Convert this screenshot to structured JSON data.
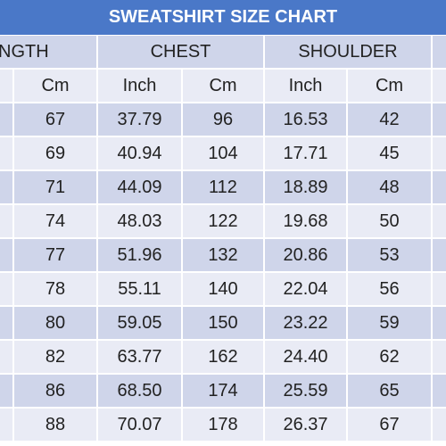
{
  "header": {
    "title": "SWEATSHIRT SIZE CHART"
  },
  "table": {
    "groups": [
      "NGTH",
      "CHEST",
      "SHOULDER"
    ],
    "subheaders": [
      "Cm",
      "Inch",
      "Cm",
      "Inch",
      "Cm"
    ],
    "rows": [
      [
        "67",
        "37.79",
        "96",
        "16.53",
        "42"
      ],
      [
        "69",
        "40.94",
        "104",
        "17.71",
        "45"
      ],
      [
        "71",
        "44.09",
        "112",
        "18.89",
        "48"
      ],
      [
        "74",
        "48.03",
        "122",
        "19.68",
        "50"
      ],
      [
        "77",
        "51.96",
        "132",
        "20.86",
        "53"
      ],
      [
        "78",
        "55.11",
        "140",
        "22.04",
        "56"
      ],
      [
        "80",
        "59.05",
        "150",
        "23.22",
        "59"
      ],
      [
        "82",
        "63.77",
        "162",
        "24.40",
        "62"
      ],
      [
        "86",
        "68.50",
        "174",
        "25.59",
        "65"
      ],
      [
        "88",
        "70.07",
        "178",
        "26.37",
        "67"
      ]
    ]
  }
}
